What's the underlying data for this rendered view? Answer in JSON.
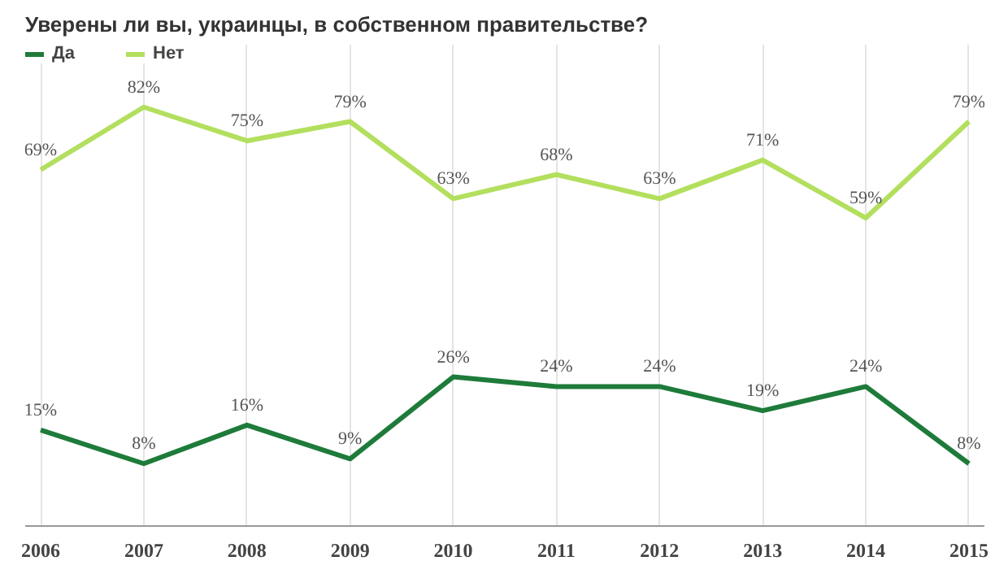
{
  "chart_data": {
    "type": "line",
    "title": "Уверены ли вы, украинцы, в собственном правительстве?",
    "categories": [
      "2006",
      "2007",
      "2008",
      "2009",
      "2010",
      "2011",
      "2012",
      "2013",
      "2014",
      "2015"
    ],
    "series": [
      {
        "name": "Да",
        "color": "#1e7b3a",
        "values": [
          15,
          8,
          16,
          9,
          26,
          24,
          24,
          19,
          24,
          8
        ],
        "value_labels": [
          "15%",
          "8%",
          "16%",
          "9%",
          "26%",
          "24%",
          "24%",
          "19%",
          "24%",
          "8%"
        ]
      },
      {
        "name": "Нет",
        "color": "#b3df5e",
        "values": [
          69,
          82,
          75,
          79,
          63,
          68,
          63,
          71,
          59,
          79
        ],
        "value_labels": [
          "69%",
          "82%",
          "75%",
          "79%",
          "63%",
          "68%",
          "63%",
          "71%",
          "59%",
          "79%"
        ]
      }
    ],
    "grid": "x",
    "legend": "top left",
    "marker": "none",
    "line_style": "solid",
    "tick_labels": "x"
  }
}
